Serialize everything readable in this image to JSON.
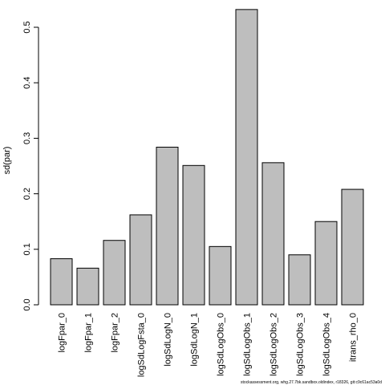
{
  "chart_data": {
    "type": "bar",
    "ylabel": "sd(par)",
    "xlabel": "",
    "ylim": [
      0,
      0.5
    ],
    "yticks": [
      0.0,
      0.1,
      0.2,
      0.3,
      0.4,
      0.5
    ],
    "ytick_labels": [
      "0.0",
      "0.1",
      "0.2",
      "0.3",
      "0.4",
      "0.5"
    ],
    "categories": [
      "logFpar_0",
      "logFpar_1",
      "logFpar_2",
      "logSdLogFsta_0",
      "logSdLogN_0",
      "logSdLogN_1",
      "logSdLogObs_0",
      "logSdLogObs_1",
      "logSdLogObs_2",
      "logSdLogObs_3",
      "logSdLogObs_4",
      "itrans_rho_0"
    ],
    "values": [
      0.083,
      0.066,
      0.116,
      0.162,
      0.284,
      0.251,
      0.105,
      0.532,
      0.256,
      0.09,
      0.15,
      0.208
    ],
    "bar_color": "#bebebe",
    "bar_edge_color": "#000000",
    "grid": false,
    "footer": "stockassessment.org, whg.27.7bk.sandbox.oldindex, r18326, git:c9c61ac53a0d"
  }
}
